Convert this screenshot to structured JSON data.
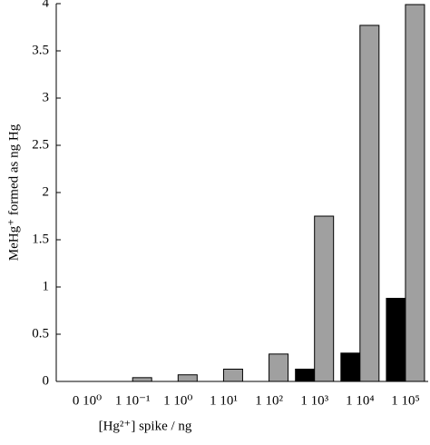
{
  "chart_data": {
    "type": "bar",
    "categories": [
      "0 10⁰",
      "1 10⁻¹",
      "1 10⁰",
      "1 10¹",
      "1 10²",
      "1 10³",
      "1 10⁴",
      "1 10⁵"
    ],
    "series": [
      {
        "color": "#000000",
        "values": [
          0,
          0,
          0,
          0,
          0,
          0.13,
          0.3,
          0.88
        ]
      },
      {
        "color": "#a0a0a0",
        "values": [
          0,
          0.04,
          0.07,
          0.13,
          0.29,
          1.75,
          3.77,
          3.99
        ]
      }
    ],
    "xlabel": "[Hg²⁺] spike / ng",
    "ylabel": "MeHg⁺ formed as ng Hg",
    "ylim": [
      0,
      4
    ],
    "yticks": [
      0,
      0.5,
      1,
      1.5,
      2,
      2.5,
      3,
      3.5,
      4
    ]
  }
}
